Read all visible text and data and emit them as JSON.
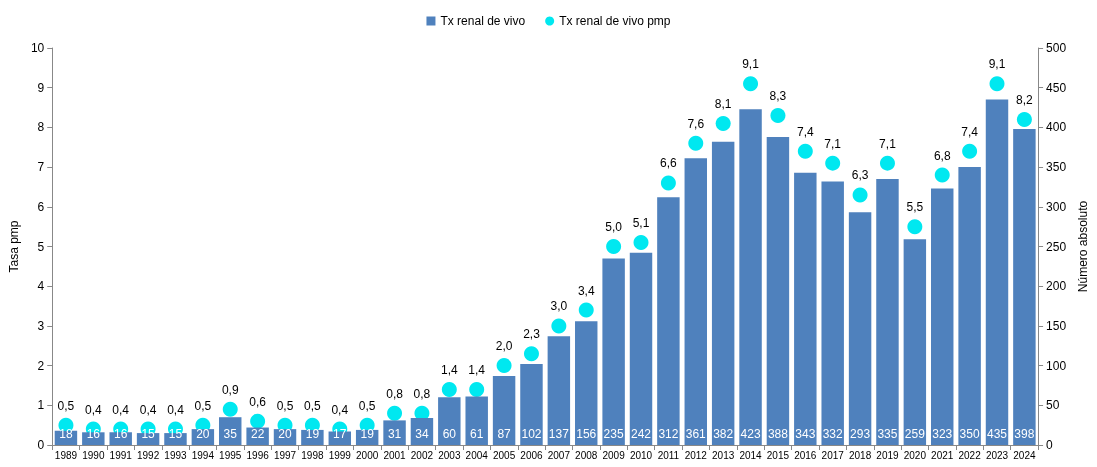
{
  "chart_data": {
    "type": "bar",
    "categories": [
      "1989",
      "1990",
      "1991",
      "1992",
      "1993",
      "1994",
      "1995",
      "1996",
      "1997",
      "1998",
      "1999",
      "2000",
      "2001",
      "2002",
      "2003",
      "2004",
      "2005",
      "2006",
      "2007",
      "2008",
      "2009",
      "2010",
      "2011",
      "2012",
      "2013",
      "2014",
      "2015",
      "2016",
      "2017",
      "2018",
      "2019",
      "2020",
      "2021",
      "2022",
      "2023",
      "2024"
    ],
    "ylabel": "Tasa pmp",
    "y2label": "Número absoluto",
    "ylim": [
      0,
      10
    ],
    "yticks": [
      0,
      1,
      2,
      3,
      4,
      5,
      6,
      7,
      8,
      9,
      10
    ],
    "y2lim": [
      0,
      500
    ],
    "y2ticks": [
      0,
      50,
      100,
      150,
      200,
      250,
      300,
      350,
      400,
      450,
      500
    ],
    "legend": "top",
    "grid": false,
    "series": [
      {
        "name": "Tx renal de vivo",
        "axis": "y2",
        "color": "#4f81bd",
        "values": [
          18,
          16,
          16,
          15,
          15,
          20,
          35,
          22,
          20,
          19,
          17,
          19,
          31,
          34,
          60,
          61,
          87,
          102,
          137,
          156,
          235,
          242,
          312,
          361,
          382,
          423,
          388,
          343,
          332,
          293,
          335,
          259,
          323,
          350,
          435,
          398
        ],
        "value_labels": [
          "18",
          "16",
          "16",
          "15",
          "15",
          "20",
          "35",
          "22",
          "20",
          "19",
          "17",
          "19",
          "31",
          "34",
          "60",
          "61",
          "87",
          "102",
          "137",
          "156",
          "235",
          "242",
          "312",
          "361",
          "382",
          "423",
          "388",
          "343",
          "332",
          "293",
          "335",
          "259",
          "323",
          "350",
          "435",
          "398"
        ]
      },
      {
        "name": "Tx renal de vivo pmp",
        "type": "scatter",
        "marker": "circle",
        "color": "#00e8f0",
        "values": [
          0.5,
          0.4,
          0.4,
          0.4,
          0.4,
          0.5,
          0.9,
          0.6,
          0.5,
          0.5,
          0.4,
          0.5,
          0.8,
          0.8,
          1.4,
          1.4,
          2.0,
          2.3,
          3.0,
          3.4,
          5.0,
          5.1,
          6.6,
          7.6,
          8.1,
          9.1,
          8.3,
          7.4,
          7.1,
          6.3,
          7.1,
          5.5,
          6.8,
          7.4,
          9.1,
          8.2
        ],
        "value_labels": [
          "0,5",
          "0,4",
          "0,4",
          "0,4",
          "0,4",
          "0,5",
          "0,9",
          "0,6",
          "0,5",
          "0,5",
          "0,4",
          "0,5",
          "0,8",
          "0,8",
          "1,4",
          "1,4",
          "2,0",
          "2,3",
          "3,0",
          "3,4",
          "5,0",
          "5,1",
          "6,6",
          "7,6",
          "8,1",
          "9,1",
          "8,3",
          "7,4",
          "7,1",
          "6,3",
          "7,1",
          "5,5",
          "6,8",
          "7,4",
          "9,1",
          "8,2"
        ]
      }
    ]
  }
}
